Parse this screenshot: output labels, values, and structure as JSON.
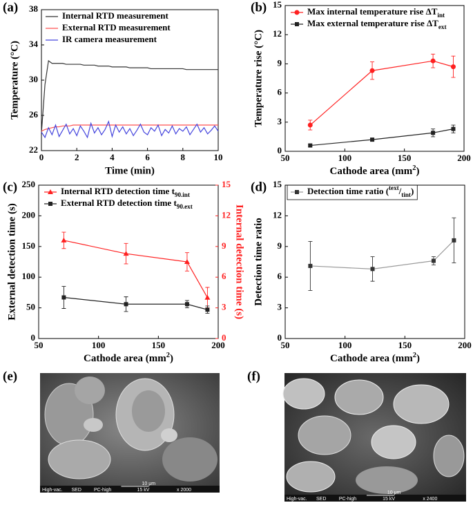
{
  "chart_data": [
    {
      "type": "line",
      "panel": "(a)",
      "xlabel": "Time (min)",
      "ylabel": "Temperature (°C)",
      "xlim": [
        0,
        10
      ],
      "xticks": [
        0,
        2,
        4,
        6,
        8,
        10
      ],
      "ylim": [
        22,
        38
      ],
      "yticks": [
        22,
        26,
        30,
        34,
        38
      ],
      "legend": "upper left",
      "x": [
        0,
        0.2,
        0.4,
        0.6,
        0.8,
        1,
        1.2,
        1.4,
        1.6,
        1.8,
        2,
        2.2,
        2.4,
        2.6,
        2.8,
        3,
        3.2,
        3.4,
        3.6,
        3.8,
        4,
        4.2,
        4.4,
        4.6,
        4.8,
        5,
        5.2,
        5.4,
        5.6,
        5.8,
        6,
        6.2,
        6.4,
        6.6,
        6.8,
        7,
        7.2,
        7.4,
        7.6,
        7.8,
        8,
        8.2,
        8.4,
        8.6,
        8.8,
        9,
        9.2,
        9.4,
        9.6,
        9.8,
        10
      ],
      "series": [
        {
          "name": "Internal RTD measurement",
          "color": "#333333",
          "values": [
            24.0,
            29.5,
            32.2,
            31.9,
            31.9,
            31.9,
            31.9,
            31.8,
            31.8,
            31.8,
            31.8,
            31.8,
            31.7,
            31.7,
            31.7,
            31.7,
            31.6,
            31.6,
            31.6,
            31.6,
            31.5,
            31.5,
            31.5,
            31.5,
            31.5,
            31.4,
            31.4,
            31.4,
            31.4,
            31.4,
            31.4,
            31.3,
            31.3,
            31.3,
            31.3,
            31.3,
            31.3,
            31.3,
            31.3,
            31.3,
            31.3,
            31.2,
            31.2,
            31.2,
            31.2,
            31.2,
            31.2,
            31.2,
            31.2,
            31.2,
            31.2
          ]
        },
        {
          "name": "External RTD measurement",
          "color": "#ff5050",
          "values": [
            24.2,
            24.4,
            24.5,
            24.6,
            24.7,
            24.7,
            24.8,
            24.8,
            24.8,
            24.9,
            24.9,
            24.9,
            24.9,
            24.9,
            24.9,
            24.9,
            24.9,
            24.9,
            24.9,
            24.9,
            24.9,
            24.9,
            24.9,
            24.9,
            24.9,
            24.9,
            24.9,
            24.9,
            24.9,
            24.9,
            24.9,
            24.9,
            24.9,
            24.9,
            24.9,
            24.9,
            24.9,
            24.9,
            24.9,
            24.9,
            24.9,
            24.9,
            24.9,
            24.9,
            24.9,
            24.9,
            24.9,
            24.9,
            24.9,
            24.9,
            24.9
          ]
        },
        {
          "name": "IR camera measurement",
          "color": "#4444dd",
          "values": [
            24.1,
            23.5,
            24.6,
            23.8,
            24.9,
            23.6,
            24.3,
            25.0,
            23.9,
            24.5,
            23.7,
            24.8,
            24.2,
            23.5,
            25.1,
            24.0,
            24.6,
            23.8,
            24.4,
            25.3,
            23.6,
            24.9,
            24.1,
            24.7,
            23.9,
            24.5,
            23.7,
            24.3,
            25.0,
            24.1,
            23.8,
            24.6,
            24.2,
            24.9,
            23.7,
            24.4,
            24.0,
            24.8,
            23.9,
            24.5,
            24.2,
            24.7,
            23.8,
            24.4,
            25.0,
            24.1,
            24.6,
            23.9,
            24.3,
            24.8,
            24.2
          ]
        }
      ]
    },
    {
      "type": "line",
      "panel": "(b)",
      "xlabel": [
        {
          "text": "Cathode area (mm"
        },
        {
          "text": "2",
          "shift": "super"
        },
        {
          "text": ")"
        }
      ],
      "ylabel": "Temperature rise (°C)",
      "xlim": [
        50,
        200
      ],
      "xticks": [
        50,
        100,
        150,
        200
      ],
      "ylim": [
        0,
        15
      ],
      "yticks": [
        0,
        3,
        6,
        9,
        12,
        15
      ],
      "legend": "upper left",
      "x": [
        71,
        123,
        174,
        191
      ],
      "series": [
        {
          "name": [
            {
              "text": "Max internal temperature rise ΔT"
            },
            {
              "text": "int",
              "shift": "sub"
            }
          ],
          "color": "#ff2020",
          "marker": "circle",
          "values": [
            2.7,
            8.3,
            9.3,
            8.7
          ],
          "errors": [
            0.5,
            0.9,
            0.7,
            1.1
          ]
        },
        {
          "name": [
            {
              "text": "Max external temperature rise ΔT"
            },
            {
              "text": "ext",
              "shift": "sub"
            }
          ],
          "color": "#222222",
          "marker": "square",
          "values": [
            0.6,
            1.2,
            1.9,
            2.3
          ],
          "errors": [
            0.1,
            0.1,
            0.4,
            0.4
          ]
        }
      ]
    },
    {
      "type": "line",
      "panel": "(c)",
      "xlabel": [
        {
          "text": "Cathode area (mm"
        },
        {
          "text": "2",
          "shift": "super"
        },
        {
          "text": ")"
        }
      ],
      "ylabel": "External detection time (s)",
      "y2label": "Internal detection time (s)",
      "y2color": "#ff2020",
      "xlim": [
        50,
        200
      ],
      "xticks": [
        50,
        100,
        150,
        200
      ],
      "ylim": [
        0,
        250
      ],
      "yticks": [
        0,
        50,
        100,
        150,
        200,
        250
      ],
      "y2lim": [
        0,
        15
      ],
      "y2ticks": [
        0,
        3,
        6,
        9,
        12,
        15
      ],
      "legend": "upper left",
      "x": [
        71,
        123,
        174,
        191
      ],
      "series": [
        {
          "name": [
            {
              "text": "Internal RTD detection time t"
            },
            {
              "text": "90.int",
              "shift": "sub"
            }
          ],
          "color": "#ff2020",
          "marker": "triangle",
          "axis": "y2",
          "values": [
            9.6,
            8.3,
            7.5,
            4.0
          ],
          "errors": [
            0.8,
            1.0,
            0.9,
            1.0
          ]
        },
        {
          "name": [
            {
              "text": "External RTD detection time t"
            },
            {
              "text": "90.ext",
              "shift": "sub"
            }
          ],
          "color": "#222222",
          "marker": "square",
          "values": [
            67,
            56,
            56,
            47
          ],
          "errors": [
            18,
            12,
            6,
            6
          ]
        }
      ]
    },
    {
      "type": "line",
      "panel": "(d)",
      "xlabel": [
        {
          "text": "Cathode area (mm"
        },
        {
          "text": "2",
          "shift": "super"
        },
        {
          "text": ")"
        }
      ],
      "ylabel": "Detection time ratio",
      "xlim": [
        50,
        200
      ],
      "xticks": [
        50,
        100,
        150,
        200
      ],
      "ylim": [
        0,
        15
      ],
      "yticks": [
        0,
        3,
        6,
        9,
        12,
        15
      ],
      "legend": "upper left",
      "x": [
        71,
        123,
        174,
        191
      ],
      "series": [
        {
          "name": [
            {
              "text": "Detection time ratio ("
            },
            {
              "text": "text",
              "shift": "super"
            },
            {
              "text": "/"
            },
            {
              "text": "tint",
              "shift": "sub"
            },
            {
              "text": ")"
            }
          ],
          "color": "#333333",
          "line_color": "#999999",
          "marker": "square",
          "values": [
            7.1,
            6.8,
            7.6,
            9.6
          ],
          "errors": [
            2.4,
            1.2,
            0.4,
            2.2
          ]
        }
      ]
    }
  ],
  "images": [
    {
      "label": "(e)",
      "footer": [
        "High-vac.",
        "SED",
        "PC-high",
        "15 kV",
        "x 2000"
      ],
      "scale": "10 μm"
    },
    {
      "label": "(f)",
      "footer": [
        "High-vac.",
        "SED",
        "PC-high",
        "15 kV",
        "x 2400"
      ],
      "scale": "10 μm"
    }
  ]
}
